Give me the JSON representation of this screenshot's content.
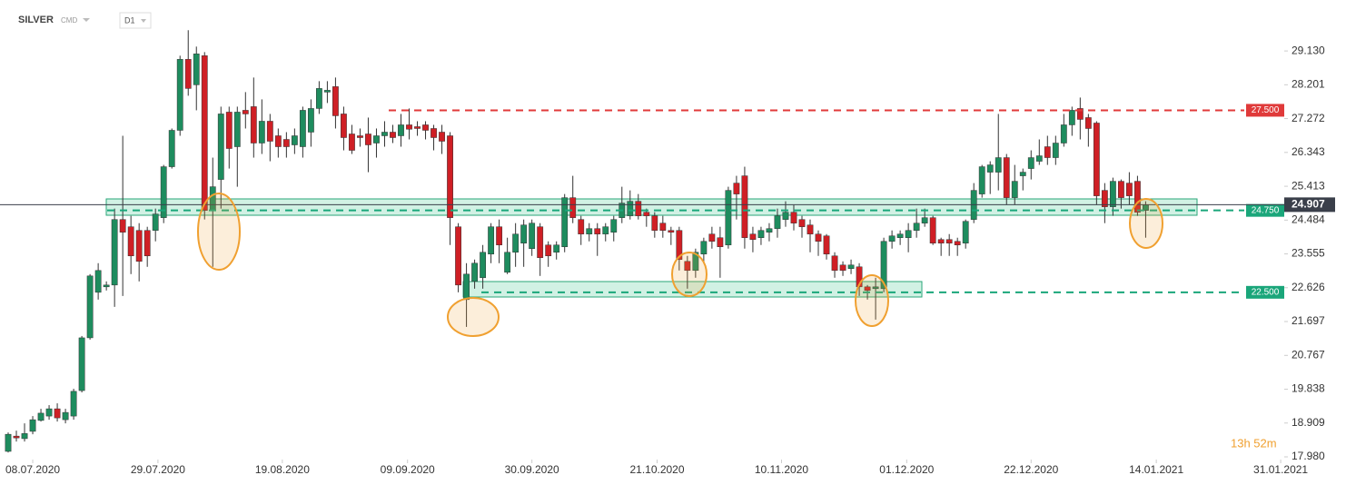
{
  "header": {
    "symbol": "SILVER",
    "market": "CMD",
    "interval": "D1",
    "timer": "13h 52m"
  },
  "chart_data": {
    "type": "candlestick",
    "up_color": "#1e8c5e",
    "down_color": "#cf1f25",
    "ylim": [
      17.93,
      30.53
    ],
    "yticks": [
      {
        "value": 17.98,
        "label": "17.980"
      },
      {
        "value": 18.909,
        "label": "18.909"
      },
      {
        "value": 19.838,
        "label": "19.838"
      },
      {
        "value": 20.767,
        "label": "20.767"
      },
      {
        "value": 21.697,
        "label": "21.697"
      },
      {
        "value": 22.626,
        "label": "22.626"
      },
      {
        "value": 23.555,
        "label": "23.555"
      },
      {
        "value": 24.484,
        "label": "24.484"
      },
      {
        "value": 25.413,
        "label": "25.413"
      },
      {
        "value": 26.343,
        "label": "26.343"
      },
      {
        "value": 27.272,
        "label": "27.272"
      },
      {
        "value": 28.201,
        "label": "28.201"
      },
      {
        "value": 29.13,
        "label": "29.130"
      }
    ],
    "xlim": [
      -1,
      156.6
    ],
    "xticks": [
      {
        "value": 3,
        "label": "08.07.2020"
      },
      {
        "value": 18.3,
        "label": "29.07.2020"
      },
      {
        "value": 33.5,
        "label": "19.08.2020"
      },
      {
        "value": 48.8,
        "label": "09.09.2020"
      },
      {
        "value": 64,
        "label": "30.09.2020"
      },
      {
        "value": 79.3,
        "label": "21.10.2020"
      },
      {
        "value": 94.5,
        "label": "10.11.2020"
      },
      {
        "value": 109.8,
        "label": "01.12.2020"
      },
      {
        "value": 125,
        "label": "22.12.2020"
      },
      {
        "value": 140.3,
        "label": "14.01.2021"
      },
      {
        "value": 155.5,
        "label": "31.01.2021"
      }
    ],
    "levels": [
      {
        "value": 27.5,
        "label": "27.500",
        "color": "#e03a3a"
      },
      {
        "value": 24.75,
        "label": "24.750",
        "color": "#1aa67a"
      },
      {
        "value": 22.5,
        "label": "22.500",
        "color": "#1aa67a"
      }
    ],
    "last_price": {
      "value": 24.907,
      "label": "24.907",
      "color": "#3a3f4a"
    },
    "open": [
      18.13,
      18.55,
      18.48,
      18.68,
      18.98,
      19.1,
      19.3,
      19.0,
      19.1,
      19.8,
      21.25,
      22.5,
      22.65,
      22.7,
      24.5,
      24.3,
      24.2,
      24.2,
      24.2,
      24.55,
      25.95,
      26.95,
      28.9,
      28.2,
      29.0,
      24.75,
      25.6,
      27.45,
      26.5,
      27.5,
      27.6,
      26.6,
      27.2,
      26.8,
      26.7,
      26.55,
      26.5,
      26.9,
      27.55,
      28.0,
      28.15,
      27.4,
      26.85,
      26.8,
      26.85,
      26.6,
      26.8,
      26.9,
      26.8,
      27.1,
      27.05,
      27.1,
      27.0,
      26.9,
      26.8,
      24.3,
      22.3,
      22.8,
      22.9,
      23.55,
      24.3,
      23.05,
      23.6,
      23.85,
      23.7,
      24.3,
      23.8,
      23.6,
      23.75,
      25.1,
      24.5,
      24.1,
      24.25,
      24.1,
      24.15,
      24.55,
      24.6,
      25.0,
      24.7,
      24.6,
      24.4,
      24.2,
      24.2,
      23.35,
      23.1,
      23.55,
      24.1,
      24.0,
      23.8,
      25.5,
      25.7,
      24.1,
      24.0,
      24.15,
      24.25,
      24.5,
      24.7,
      24.5,
      24.35,
      24.1,
      24.05,
      23.5,
      23.25,
      23.15,
      23.2,
      22.65,
      22.6,
      22.6,
      23.9,
      24.0,
      24.0,
      24.2,
      24.4,
      24.55,
      23.95,
      23.95,
      23.9,
      23.85,
      24.5,
      25.2,
      25.8,
      25.8,
      26.2,
      25.1,
      25.7,
      25.9,
      26.1,
      26.5,
      26.2,
      26.6,
      27.1,
      27.55,
      27.3,
      27.15,
      25.3,
      24.85,
      25.55,
      25.5,
      25.55,
      24.75
    ],
    "high": [
      18.65,
      18.7,
      18.9,
      19.1,
      19.3,
      19.4,
      19.45,
      19.3,
      19.85,
      21.3,
      23.0,
      23.3,
      22.8,
      24.8,
      26.8,
      24.6,
      24.4,
      24.3,
      24.8,
      26.0,
      27.0,
      29.0,
      29.7,
      29.25,
      29.1,
      26.2,
      27.6,
      27.6,
      27.6,
      28.0,
      28.4,
      27.8,
      27.4,
      27.0,
      26.9,
      27.0,
      27.6,
      27.8,
      28.3,
      28.3,
      28.4,
      27.6,
      27.1,
      27.0,
      27.3,
      27.0,
      27.2,
      27.1,
      27.4,
      27.55,
      27.2,
      27.2,
      27.1,
      27.1,
      26.9,
      24.4,
      23.3,
      23.4,
      23.8,
      24.4,
      24.5,
      24.0,
      24.4,
      24.5,
      24.5,
      24.4,
      23.9,
      23.9,
      25.2,
      25.7,
      24.6,
      24.4,
      24.4,
      24.4,
      24.6,
      25.4,
      25.3,
      25.2,
      24.8,
      24.7,
      24.6,
      24.3,
      24.3,
      23.5,
      23.7,
      24.0,
      24.3,
      24.3,
      25.4,
      25.7,
      25.95,
      24.3,
      24.3,
      24.4,
      24.8,
      25.0,
      24.9,
      24.6,
      24.5,
      24.2,
      24.1,
      23.6,
      23.35,
      23.4,
      23.3,
      22.7,
      22.9,
      24.0,
      24.2,
      24.2,
      24.4,
      24.8,
      24.8,
      24.6,
      24.0,
      24.1,
      24.0,
      24.5,
      25.5,
      26.0,
      26.1,
      27.4,
      26.3,
      26.0,
      25.9,
      26.4,
      26.7,
      26.8,
      26.8,
      27.4,
      27.6,
      27.85,
      27.4,
      27.2,
      25.5,
      25.65,
      25.6,
      25.8,
      25.7,
      25.0
    ],
    "low": [
      18.1,
      18.4,
      18.4,
      18.6,
      18.95,
      19.0,
      18.95,
      18.9,
      19.0,
      19.75,
      21.2,
      22.3,
      22.55,
      22.1,
      22.4,
      23.0,
      22.8,
      23.2,
      23.9,
      24.4,
      25.9,
      26.8,
      27.9,
      27.5,
      24.5,
      23.2,
      24.8,
      25.9,
      25.4,
      27.0,
      26.2,
      26.3,
      26.1,
      26.2,
      26.2,
      26.3,
      26.2,
      26.5,
      27.4,
      27.7,
      27.0,
      26.4,
      26.3,
      26.5,
      25.8,
      26.2,
      26.5,
      26.6,
      26.5,
      26.7,
      26.8,
      26.7,
      26.4,
      26.3,
      23.8,
      22.5,
      21.55,
      22.6,
      22.6,
      23.3,
      23.3,
      23.0,
      23.2,
      23.2,
      23.5,
      22.95,
      23.2,
      23.4,
      23.6,
      24.4,
      23.8,
      23.9,
      23.5,
      23.9,
      23.9,
      24.4,
      24.5,
      24.5,
      24.3,
      24.0,
      24.0,
      23.8,
      23.1,
      22.6,
      22.9,
      23.3,
      23.7,
      22.9,
      23.7,
      24.5,
      23.7,
      23.6,
      23.8,
      23.9,
      24.0,
      24.3,
      24.2,
      24.0,
      23.6,
      23.5,
      23.4,
      22.9,
      22.95,
      23.0,
      22.4,
      22.3,
      21.75,
      22.5,
      23.7,
      23.8,
      23.6,
      24.0,
      24.3,
      23.8,
      23.5,
      23.5,
      23.5,
      23.7,
      24.4,
      25.1,
      25.2,
      25.3,
      24.9,
      24.9,
      25.3,
      25.6,
      26.0,
      26.0,
      26.0,
      26.5,
      26.8,
      26.7,
      26.5,
      24.9,
      24.4,
      24.6,
      24.8,
      24.9,
      24.6,
      24.0
    ],
    "close": [
      18.6,
      18.5,
      18.62,
      19.0,
      19.18,
      19.3,
      19.05,
      19.2,
      19.78,
      21.25,
      22.95,
      23.1,
      22.7,
      24.5,
      24.15,
      23.5,
      23.35,
      23.5,
      24.65,
      25.95,
      26.95,
      28.9,
      28.1,
      29.05,
      24.75,
      25.4,
      27.4,
      26.45,
      27.45,
      27.4,
      26.6,
      27.2,
      26.65,
      26.5,
      26.5,
      26.8,
      27.5,
      27.55,
      28.1,
      28.05,
      27.35,
      26.75,
      26.4,
      26.75,
      26.55,
      26.8,
      26.9,
      26.75,
      27.1,
      26.98,
      27.0,
      26.95,
      26.75,
      26.65,
      24.55,
      22.7,
      23.0,
      23.3,
      23.6,
      24.3,
      23.8,
      23.6,
      24.1,
      24.35,
      24.4,
      23.45,
      23.5,
      23.8,
      25.1,
      24.55,
      24.1,
      24.25,
      24.1,
      24.3,
      24.5,
      24.95,
      25.0,
      24.6,
      24.6,
      24.2,
      24.2,
      24.15,
      23.4,
      23.1,
      23.6,
      23.9,
      23.9,
      23.75,
      25.3,
      25.2,
      24.0,
      23.95,
      24.2,
      24.25,
      24.6,
      24.7,
      24.4,
      24.3,
      24.1,
      23.9,
      23.55,
      23.1,
      23.1,
      23.25,
      22.65,
      22.55,
      22.65,
      23.9,
      24.05,
      24.1,
      24.2,
      24.4,
      24.55,
      23.85,
      23.85,
      23.85,
      23.8,
      24.45,
      25.3,
      25.95,
      26.0,
      26.2,
      25.1,
      25.55,
      25.8,
      26.2,
      26.25,
      26.2,
      26.6,
      27.1,
      27.5,
      27.25,
      27.0,
      25.15,
      24.85,
      25.55,
      25.1,
      25.15,
      24.7,
      24.9
    ]
  }
}
